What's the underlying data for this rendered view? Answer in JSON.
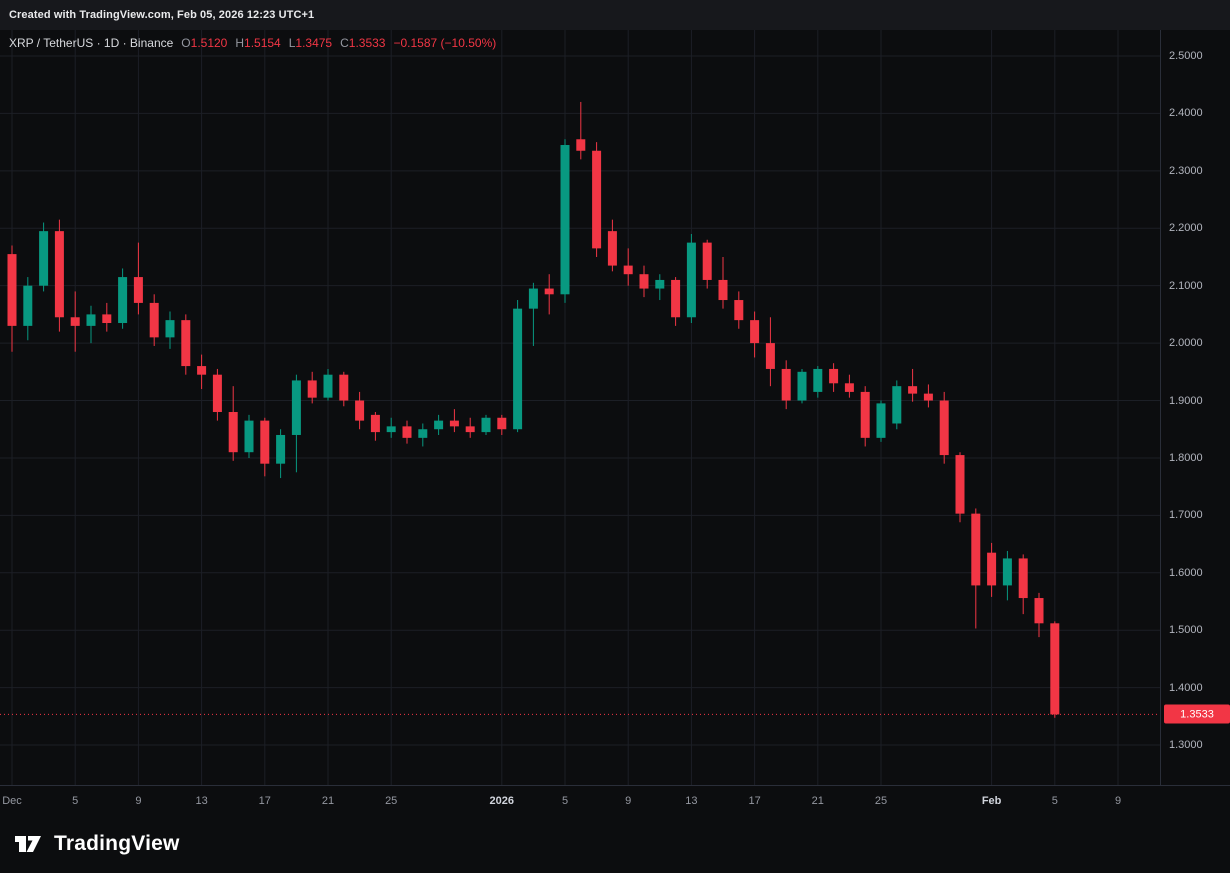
{
  "banner": {
    "text": "Created with TradingView.com, Feb 05, 2026 12:23 UTC+1"
  },
  "legend": {
    "symbol": "XRP / TetherUS · 1D · Binance",
    "ohlc": [
      {
        "label": "O",
        "value": "1.5120"
      },
      {
        "label": "H",
        "value": "1.5154"
      },
      {
        "label": "L",
        "value": "1.3475"
      },
      {
        "label": "C",
        "value": "1.3533"
      }
    ],
    "change": "−0.1587 (−10.50%)"
  },
  "footer": {
    "logo_text": "TradingView"
  },
  "colors": {
    "up": "#089981",
    "down": "#f23645",
    "background": "#0c0d0f",
    "grid": "#1c1f26",
    "axis_line": "#2a2e39",
    "axis_text": "#b2b5be",
    "last_price": "#f23645"
  },
  "chart_data": {
    "type": "candlestick",
    "symbol": "XRP / TetherUS",
    "interval": "1D",
    "exchange": "Binance",
    "y_min": 1.2304,
    "y_max": 2.5453,
    "grid": true,
    "y_axis": {
      "ticks": [
        "2.5000",
        "2.4000",
        "2.3000",
        "2.2000",
        "2.1000",
        "2.0000",
        "1.9000",
        "1.8000",
        "1.7000",
        "1.6000",
        "1.5000",
        "1.4000",
        "1.3000"
      ]
    },
    "x_axis": {
      "ticks": [
        {
          "label": "Dec",
          "day": 0,
          "bold": false
        },
        {
          "label": "5",
          "day": 4,
          "bold": false
        },
        {
          "label": "9",
          "day": 8,
          "bold": false
        },
        {
          "label": "13",
          "day": 12,
          "bold": false
        },
        {
          "label": "17",
          "day": 16,
          "bold": false
        },
        {
          "label": "21",
          "day": 20,
          "bold": false
        },
        {
          "label": "25",
          "day": 24,
          "bold": false
        },
        {
          "label": "2026",
          "day": 31,
          "bold": true
        },
        {
          "label": "5",
          "day": 35,
          "bold": false
        },
        {
          "label": "9",
          "day": 39,
          "bold": false
        },
        {
          "label": "13",
          "day": 43,
          "bold": false
        },
        {
          "label": "17",
          "day": 47,
          "bold": false
        },
        {
          "label": "21",
          "day": 51,
          "bold": false
        },
        {
          "label": "25",
          "day": 55,
          "bold": false
        },
        {
          "label": "Feb",
          "day": 62,
          "bold": true
        },
        {
          "label": "5",
          "day": 66,
          "bold": false
        },
        {
          "label": "9",
          "day": 70,
          "bold": false
        }
      ]
    },
    "last_price": {
      "value": "1.3533",
      "price": 1.3533
    },
    "candles_format": [
      "date",
      "open",
      "high",
      "low",
      "close"
    ],
    "candles": [
      [
        "Dec 1",
        2.155,
        2.17,
        1.985,
        2.03
      ],
      [
        "Dec 2",
        2.03,
        2.115,
        2.005,
        2.1
      ],
      [
        "Dec 3",
        2.1,
        2.21,
        2.09,
        2.195
      ],
      [
        "Dec 4",
        2.195,
        2.215,
        2.02,
        2.045
      ],
      [
        "Dec 5",
        2.045,
        2.09,
        1.985,
        2.03
      ],
      [
        "Dec 6",
        2.03,
        2.065,
        2.0,
        2.05
      ],
      [
        "Dec 7",
        2.05,
        2.07,
        2.02,
        2.035
      ],
      [
        "Dec 8",
        2.035,
        2.13,
        2.025,
        2.115
      ],
      [
        "Dec 9",
        2.115,
        2.175,
        2.05,
        2.07
      ],
      [
        "Dec 10",
        2.07,
        2.085,
        1.995,
        2.01
      ],
      [
        "Dec 11",
        2.01,
        2.055,
        1.99,
        2.04
      ],
      [
        "Dec 12",
        2.04,
        2.05,
        1.945,
        1.96
      ],
      [
        "Dec 13",
        1.96,
        1.98,
        1.92,
        1.945
      ],
      [
        "Dec 14",
        1.945,
        1.955,
        1.865,
        1.88
      ],
      [
        "Dec 15",
        1.88,
        1.925,
        1.795,
        1.81
      ],
      [
        "Dec 16",
        1.81,
        1.875,
        1.8,
        1.865
      ],
      [
        "Dec 17",
        1.865,
        1.87,
        1.768,
        1.79
      ],
      [
        "Dec 18",
        1.79,
        1.85,
        1.765,
        1.84
      ],
      [
        "Dec 19",
        1.84,
        1.945,
        1.775,
        1.935
      ],
      [
        "Dec 20",
        1.935,
        1.95,
        1.895,
        1.905
      ],
      [
        "Dec 21",
        1.905,
        1.955,
        1.9,
        1.945
      ],
      [
        "Dec 22",
        1.945,
        1.95,
        1.89,
        1.9
      ],
      [
        "Dec 23",
        1.9,
        1.915,
        1.85,
        1.865
      ],
      [
        "Dec 24",
        1.875,
        1.88,
        1.83,
        1.845
      ],
      [
        "Dec 25",
        1.845,
        1.87,
        1.835,
        1.855
      ],
      [
        "Dec 26",
        1.855,
        1.865,
        1.825,
        1.835
      ],
      [
        "Dec 27",
        1.835,
        1.86,
        1.82,
        1.85
      ],
      [
        "Dec 28",
        1.85,
        1.875,
        1.84,
        1.865
      ],
      [
        "Dec 29",
        1.865,
        1.885,
        1.845,
        1.855
      ],
      [
        "Dec 30",
        1.855,
        1.87,
        1.835,
        1.845
      ],
      [
        "Dec 31",
        1.845,
        1.875,
        1.84,
        1.87
      ],
      [
        "Jan 1",
        1.87,
        1.875,
        1.84,
        1.85
      ],
      [
        "Jan 2",
        1.85,
        2.075,
        1.845,
        2.06
      ],
      [
        "Jan 3",
        2.06,
        2.105,
        1.995,
        2.095
      ],
      [
        "Jan 4",
        2.095,
        2.12,
        2.05,
        2.085
      ],
      [
        "Jan 5",
        2.085,
        2.355,
        2.07,
        2.345
      ],
      [
        "Jan 6",
        2.355,
        2.42,
        2.32,
        2.335
      ],
      [
        "Jan 7",
        2.335,
        2.35,
        2.15,
        2.165
      ],
      [
        "Jan 8",
        2.195,
        2.215,
        2.125,
        2.135
      ],
      [
        "Jan 9",
        2.135,
        2.165,
        2.1,
        2.12
      ],
      [
        "Jan 10",
        2.12,
        2.135,
        2.08,
        2.095
      ],
      [
        "Jan 11",
        2.095,
        2.12,
        2.075,
        2.11
      ],
      [
        "Jan 12",
        2.11,
        2.115,
        2.03,
        2.045
      ],
      [
        "Jan 13",
        2.045,
        2.19,
        2.035,
        2.175
      ],
      [
        "Jan 14",
        2.175,
        2.18,
        2.095,
        2.11
      ],
      [
        "Jan 15",
        2.11,
        2.15,
        2.06,
        2.075
      ],
      [
        "Jan 16",
        2.075,
        2.09,
        2.025,
        2.04
      ],
      [
        "Jan 17",
        2.04,
        2.055,
        1.975,
        2.0
      ],
      [
        "Jan 18",
        2.0,
        2.045,
        1.925,
        1.955
      ],
      [
        "Jan 19",
        1.955,
        1.97,
        1.885,
        1.9
      ],
      [
        "Jan 20",
        1.9,
        1.955,
        1.895,
        1.95
      ],
      [
        "Jan 21",
        1.915,
        1.96,
        1.905,
        1.955
      ],
      [
        "Jan 22",
        1.955,
        1.965,
        1.915,
        1.93
      ],
      [
        "Jan 23",
        1.93,
        1.945,
        1.905,
        1.915
      ],
      [
        "Jan 24",
        1.915,
        1.925,
        1.82,
        1.835
      ],
      [
        "Jan 25",
        1.835,
        1.9,
        1.828,
        1.895
      ],
      [
        "Jan 26",
        1.86,
        1.935,
        1.85,
        1.925
      ],
      [
        "Jan 27",
        1.925,
        1.955,
        1.898,
        1.912
      ],
      [
        "Jan 28",
        1.912,
        1.928,
        1.888,
        1.9
      ],
      [
        "Jan 29",
        1.9,
        1.915,
        1.79,
        1.805
      ],
      [
        "Jan 30",
        1.805,
        1.81,
        1.688,
        1.703
      ],
      [
        "Jan 31",
        1.703,
        1.712,
        1.503,
        1.578
      ],
      [
        "Feb 1",
        1.635,
        1.652,
        1.558,
        1.578
      ],
      [
        "Feb 2",
        1.578,
        1.638,
        1.552,
        1.625
      ],
      [
        "Feb 3",
        1.625,
        1.632,
        1.528,
        1.556
      ],
      [
        "Feb 4",
        1.556,
        1.565,
        1.488,
        1.512
      ],
      [
        "Feb 5",
        1.512,
        1.5154,
        1.3475,
        1.3533
      ]
    ]
  }
}
